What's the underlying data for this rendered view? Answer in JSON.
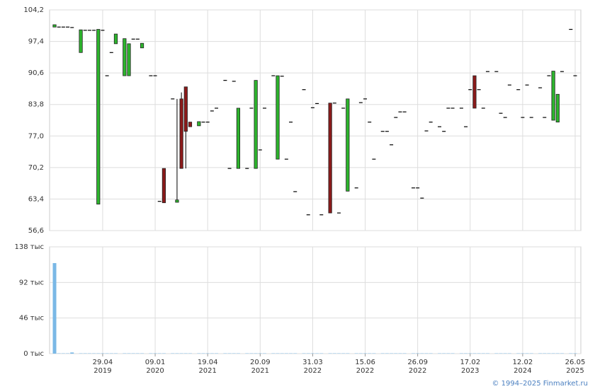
{
  "chart_data": {
    "type": "candlestick",
    "categories": [
      null,
      null,
      null,
      null,
      null,
      null,
      null,
      null,
      null,
      null,
      null,
      "29.04\n2019",
      null,
      null,
      null,
      null,
      null,
      null,
      null,
      null,
      null,
      null,
      null,
      "09.01\n2020",
      null,
      null,
      null,
      null,
      null,
      null,
      null,
      null,
      null,
      null,
      null,
      "19.04\n2021",
      null,
      null,
      null,
      null,
      null,
      null,
      null,
      null,
      null,
      null,
      null,
      "20.09\n2021",
      null,
      null,
      null,
      null,
      null,
      null,
      null,
      null,
      null,
      null,
      null,
      "31.03\n2022",
      null,
      null,
      null,
      null,
      null,
      null,
      null,
      null,
      null,
      null,
      null,
      "15.06\n2022",
      null,
      null,
      null,
      null,
      null,
      null,
      null,
      null,
      null,
      null,
      null,
      "26.09\n2022",
      null,
      null,
      null,
      null,
      null,
      null,
      null,
      null,
      null,
      null,
      null,
      "17.02\n2023",
      null,
      null,
      null,
      null,
      null,
      null,
      null,
      null,
      null,
      null,
      null,
      "12.02\n2024",
      null,
      null,
      null,
      null,
      null,
      null,
      null,
      null,
      null,
      null,
      null,
      "26.05\n2025"
    ],
    "ohlc": [
      [
        100.5,
        101,
        100.5,
        101
      ],
      [
        100.5,
        100.5,
        100.5,
        100.5
      ],
      [
        100.5,
        100.5,
        100.5,
        100.5
      ],
      [
        100.5,
        100.5,
        100.5,
        100.5
      ],
      [
        100.4,
        100.4,
        100.4,
        100.4
      ],
      null,
      [
        95,
        99.9,
        95,
        99.9
      ],
      [
        99.8,
        99.8,
        99.8,
        99.8
      ],
      [
        99.8,
        99.8,
        99.8,
        99.8
      ],
      [
        99.8,
        99.8,
        99.8,
        99.8
      ],
      [
        62.3,
        100,
        62.3,
        100
      ],
      [
        99.8,
        99.8,
        99.8,
        99.8
      ],
      [
        90,
        90,
        90,
        90
      ],
      [
        95,
        95,
        95,
        95
      ],
      [
        96.9,
        99,
        96.9,
        99
      ],
      null,
      [
        90,
        98,
        90,
        98
      ],
      [
        90,
        96.9,
        90,
        96.9
      ],
      [
        97.9,
        97.9,
        97.9,
        97.9
      ],
      [
        97.9,
        97.9,
        97.9,
        97.9
      ],
      [
        96,
        97,
        96,
        97
      ],
      null,
      [
        90,
        90,
        90,
        90
      ],
      [
        90,
        90,
        90,
        90
      ],
      [
        62.9,
        62.9,
        62.9,
        62.9
      ],
      [
        70,
        70,
        62.6,
        62.6
      ],
      null,
      [
        85,
        85,
        85,
        85
      ],
      [
        62.7,
        85,
        62.7,
        63.2
      ],
      [
        85,
        86.4,
        70,
        70
      ],
      [
        87.6,
        87.6,
        70,
        78
      ],
      [
        80,
        80,
        79,
        79
      ],
      null,
      [
        79.2,
        80.1,
        79.2,
        80.1
      ],
      [
        80,
        80,
        80,
        80
      ],
      [
        80,
        80,
        80,
        80
      ],
      [
        82.4,
        82.4,
        82.4,
        82.4
      ],
      [
        83,
        83,
        83,
        83
      ],
      null,
      [
        89,
        89,
        89,
        89
      ],
      [
        70,
        70,
        70,
        70
      ],
      [
        88.8,
        88.8,
        88.8,
        88.8
      ],
      [
        70,
        83,
        70,
        83
      ],
      null,
      [
        70,
        70,
        70,
        70
      ],
      [
        83,
        83,
        83,
        83
      ],
      [
        70,
        89,
        70,
        89
      ],
      [
        74,
        74,
        74,
        74
      ],
      [
        83,
        83,
        83,
        83
      ],
      null,
      [
        90,
        90,
        90,
        90
      ],
      [
        72,
        90,
        72,
        90
      ],
      [
        89.9,
        89.9,
        89.9,
        89.9
      ],
      [
        72,
        72,
        72,
        72
      ],
      [
        80,
        80,
        80,
        80
      ],
      [
        65,
        65,
        65,
        65
      ],
      null,
      [
        87,
        87,
        87,
        87
      ],
      [
        60,
        60,
        60,
        60
      ],
      [
        83.1,
        83.1,
        83.1,
        83.1
      ],
      [
        84,
        84,
        84,
        84
      ],
      [
        60,
        60,
        60,
        60
      ],
      null,
      [
        84.1,
        84.1,
        60.4,
        60.4
      ],
      [
        84.1,
        84.1,
        84.1,
        84.1
      ],
      [
        60.4,
        60.4,
        60.4,
        60.4
      ],
      [
        83,
        83,
        83,
        83
      ],
      [
        65.1,
        85,
        65.1,
        85
      ],
      null,
      [
        65.8,
        65.8,
        65.8,
        65.8
      ],
      [
        84.2,
        84.2,
        84.2,
        84.2
      ],
      [
        85,
        85,
        85,
        85
      ],
      [
        80,
        80,
        80,
        80
      ],
      [
        72,
        72,
        72,
        72
      ],
      null,
      [
        78,
        78,
        78,
        78
      ],
      [
        78,
        78,
        78,
        78
      ],
      [
        75.1,
        75.1,
        75.1,
        75.1
      ],
      [
        81,
        81,
        81,
        81
      ],
      [
        82.2,
        82.2,
        82.2,
        82.2
      ],
      [
        82.2,
        82.2,
        82.2,
        82.2
      ],
      null,
      [
        65.8,
        65.8,
        65.8,
        65.8
      ],
      [
        65.8,
        65.8,
        65.8,
        65.8
      ],
      [
        63.6,
        63.6,
        63.6,
        63.6
      ],
      [
        78.1,
        78.1,
        78.1,
        78.1
      ],
      [
        80,
        80,
        80,
        80
      ],
      null,
      [
        79,
        79,
        79,
        79
      ],
      [
        78,
        78,
        78,
        78
      ],
      [
        83,
        83,
        83,
        83
      ],
      [
        83,
        83,
        83,
        83
      ],
      null,
      [
        83,
        83,
        83,
        83
      ],
      [
        79,
        79,
        79,
        79
      ],
      [
        87,
        87,
        87,
        87
      ],
      [
        90,
        90,
        83,
        83
      ],
      [
        87,
        87,
        87,
        87
      ],
      [
        83,
        83,
        83,
        83
      ],
      [
        90.9,
        90.9,
        90.9,
        90.9
      ],
      null,
      [
        90.9,
        90.9,
        90.9,
        90.9
      ],
      [
        81.9,
        81.9,
        81.9,
        81.9
      ],
      [
        81,
        81,
        81,
        81
      ],
      [
        88,
        88,
        88,
        88
      ],
      null,
      [
        87,
        87,
        87,
        87
      ],
      [
        81,
        81,
        81,
        81
      ],
      [
        88,
        88,
        88,
        88
      ],
      [
        81,
        81,
        81,
        81
      ],
      null,
      [
        87.4,
        87.4,
        87.4,
        87.4
      ],
      [
        81,
        81,
        81,
        81
      ],
      [
        90,
        90,
        90,
        90
      ],
      [
        80.4,
        91,
        80.4,
        91
      ],
      [
        80,
        86,
        80,
        86
      ],
      [
        90.9,
        90.9,
        90.9,
        90.9
      ],
      null,
      [
        100,
        100,
        100,
        100
      ],
      [
        90,
        90,
        90,
        90
      ]
    ],
    "volume": [
      117,
      0.4,
      0.4,
      0.4,
      1.5,
      null,
      0.4,
      0.4,
      0.4,
      0.4,
      0.4,
      0.4,
      0.4,
      0.4,
      0.4,
      null,
      0.4,
      0.4,
      0.4,
      0.4,
      0.4,
      null,
      0.4,
      0.4,
      0.4,
      0.4,
      null,
      0.4,
      0.4,
      0.4,
      0.4,
      0.4,
      null,
      0.4,
      0.4,
      0.4,
      0.4,
      0.4,
      null,
      0.4,
      0.4,
      0.4,
      0.4,
      null,
      0.4,
      0.4,
      0.4,
      0.4,
      0.4,
      null,
      0.4,
      0.4,
      0.4,
      0.4,
      0.4,
      0.4,
      null,
      0.4,
      0.4,
      0.4,
      0.4,
      0.4,
      null,
      0.4,
      0.4,
      0.4,
      0.4,
      0.4,
      null,
      0.4,
      0.4,
      0.4,
      0.4,
      0.4,
      null,
      0.4,
      0.4,
      0.4,
      0.4,
      0.4,
      0.4,
      null,
      0.4,
      0.4,
      0.4,
      0.4,
      0.4,
      null,
      0.4,
      0.4,
      0.4,
      0.4,
      null,
      0.4,
      0.4,
      0.4,
      0.4,
      0.4,
      0.4,
      0.4,
      null,
      0.4,
      0.4,
      0.4,
      0.4,
      null,
      0.4,
      0.4,
      0.4,
      0.4,
      null,
      0.4,
      0.4,
      0.4,
      0.4,
      0.4,
      0.4,
      null,
      0.4,
      0.4
    ],
    "up_color": "#2db52d",
    "down_color": "#8b1a1a",
    "volume_color": "#7ab8e6",
    "ylim": [
      56.6,
      104.2
    ],
    "yticks": [
      {
        "value": 56.6,
        "label": "56,6"
      },
      {
        "value": 63.4,
        "label": "63,4"
      },
      {
        "value": 70.2,
        "label": "70,2"
      },
      {
        "value": 77.0,
        "label": "77,0"
      },
      {
        "value": 83.8,
        "label": "83,8"
      },
      {
        "value": 90.6,
        "label": "90,6"
      },
      {
        "value": 97.4,
        "label": "97,4"
      },
      {
        "value": 104.2,
        "label": "104,2"
      }
    ],
    "y2lim": [
      0,
      138
    ],
    "y2ticks": [
      {
        "value": 0,
        "label": "0 тыс"
      },
      {
        "value": 46,
        "label": "46 тыс"
      },
      {
        "value": 92,
        "label": "92 тыс"
      },
      {
        "value": 138,
        "label": "138 тыс"
      }
    ],
    "grid": true,
    "source": "© 1994–2025 Finmarket.ru"
  }
}
